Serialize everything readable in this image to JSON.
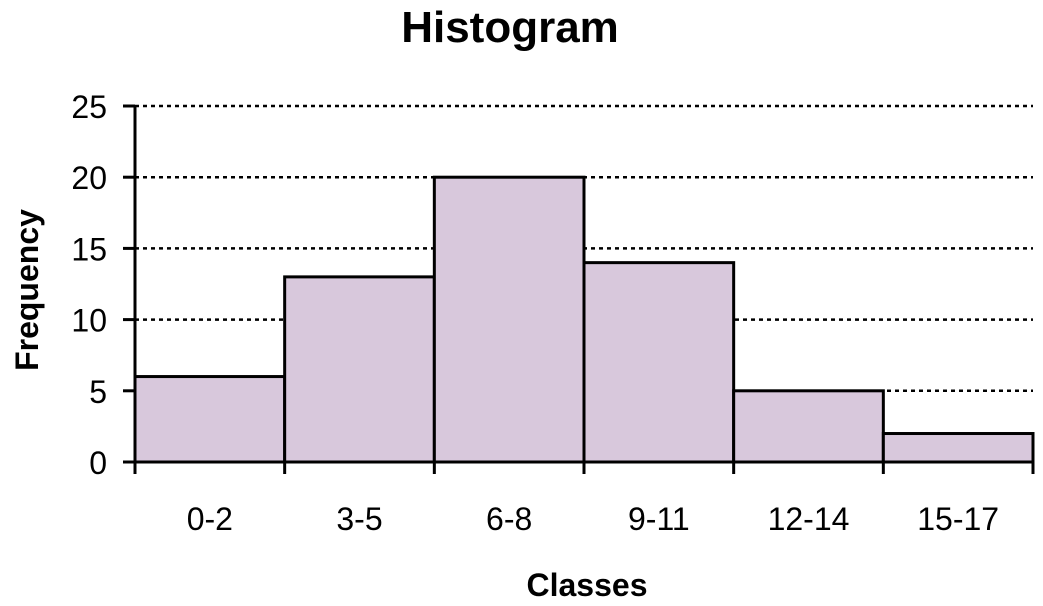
{
  "chart_data": {
    "type": "bar",
    "title": "Histogram",
    "xlabel": "Classes",
    "ylabel": "Frequency",
    "categories": [
      "0-2",
      "3-5",
      "6-8",
      "9-11",
      "12-14",
      "15-17"
    ],
    "values": [
      6,
      13,
      20,
      14,
      5,
      2
    ],
    "ylim": [
      0,
      25
    ],
    "yticks": [
      "0",
      "5",
      "10",
      "15",
      "20",
      "25"
    ],
    "grid": true,
    "legend": "none",
    "colors": {
      "bar_fill": "#d8c8dc",
      "bar_edge": "#000000",
      "grid": "#000000"
    }
  }
}
